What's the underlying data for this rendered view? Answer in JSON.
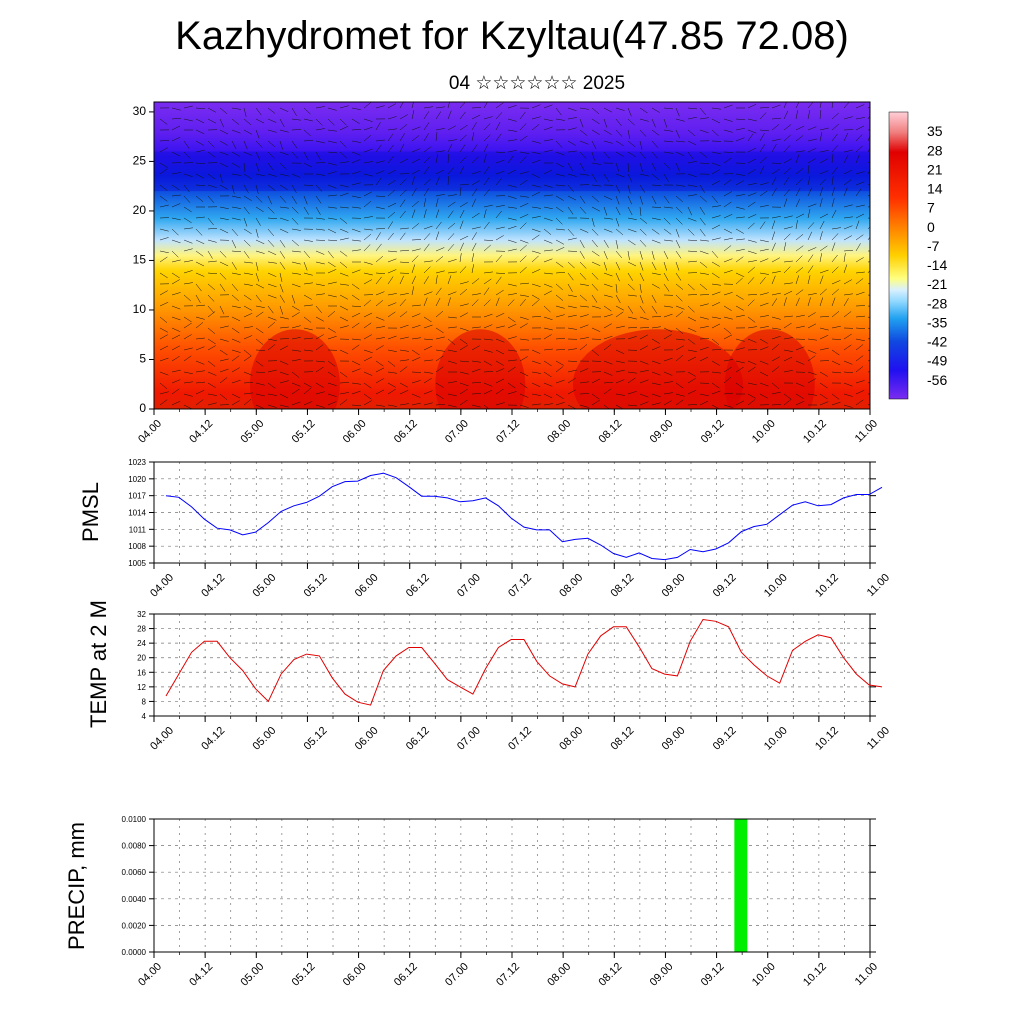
{
  "header": {
    "title": "Kazhydromet for Kzyltau(47.85 72.08)",
    "subtitle": "04 ☆☆☆☆☆☆ 2025"
  },
  "colors": {
    "pmsl_line": "#0000ff",
    "temp_line": "#e00000",
    "precip_bar": "#00ee00",
    "grid": "#666666"
  },
  "chart_data": [
    {
      "type": "heatmap",
      "name": "upper-air-cross-section",
      "x_ticks": [
        "04.00",
        "04.12",
        "05.00",
        "05.12",
        "06.00",
        "06.12",
        "07.00",
        "07.12",
        "08.00",
        "08.12",
        "09.00",
        "09.12",
        "10.00",
        "10.12",
        "11.00"
      ],
      "y_ticks": [
        0,
        5,
        10,
        15,
        20,
        25,
        30
      ],
      "ylim": [
        0,
        31
      ],
      "colorbar_labels": [
        "35",
        "28",
        "21",
        "14",
        "7",
        "0",
        "-7",
        "-14",
        "-21",
        "-28",
        "-35",
        "-42",
        "-49",
        "-56"
      ],
      "colorbar_range": [
        -63,
        42
      ],
      "wind_vectors": true
    },
    {
      "type": "line",
      "name": "pmsl",
      "ylabel": "PMSL",
      "ylim": [
        1005,
        1023
      ],
      "y_ticks": [
        1005,
        1008,
        1011,
        1014,
        1017,
        1020,
        1023
      ],
      "x_ticks": [
        "04.00",
        "04.12",
        "05.00",
        "05.12",
        "06.00",
        "06.12",
        "07.00",
        "07.12",
        "08.00",
        "08.12",
        "09.00",
        "09.12",
        "10.00",
        "10.12",
        "11.00"
      ],
      "x_step_hours": 3,
      "values": [
        1017,
        1016.7,
        1015,
        1012.8,
        1011.2,
        1010.9,
        1010,
        1010.5,
        1012.2,
        1014.2,
        1015.2,
        1015.8,
        1016.9,
        1018.6,
        1019.5,
        1019.6,
        1020.6,
        1021,
        1020.2,
        1018.6,
        1016.9,
        1016.9,
        1016.6,
        1015.9,
        1016.1,
        1016.6,
        1015.2,
        1013,
        1011.4,
        1010.9,
        1010.9,
        1008.8,
        1009.2,
        1009.4,
        1008.2,
        1006.7,
        1006,
        1006.8,
        1005.8,
        1005.6,
        1006,
        1007.4,
        1007,
        1007.5,
        1008.6,
        1010.6,
        1011.5,
        1011.9,
        1013.6,
        1015.3,
        1015.9,
        1015.2,
        1015.4,
        1016.6,
        1017.2,
        1017.2,
        1018.5
      ]
    },
    {
      "type": "line",
      "name": "temp-2m",
      "ylabel": "TEMP at 2 M",
      "ylim": [
        4,
        32
      ],
      "y_ticks": [
        4,
        8,
        12,
        16,
        20,
        24,
        28,
        32
      ],
      "x_ticks": [
        "04.00",
        "04.12",
        "05.00",
        "05.12",
        "06.00",
        "06.12",
        "07.00",
        "07.12",
        "08.00",
        "08.12",
        "09.00",
        "09.12",
        "10.00",
        "10.12",
        "11.00"
      ],
      "x_step_hours": 3,
      "values": [
        9.5,
        15.5,
        21.5,
        24.5,
        24.5,
        20,
        16.5,
        11.5,
        8,
        15.5,
        19.5,
        21,
        20.5,
        14.5,
        10,
        7.8,
        7,
        16.5,
        20.5,
        22.8,
        22.8,
        18.5,
        14,
        12,
        10,
        17,
        22.8,
        25,
        25,
        19,
        15,
        12.8,
        12,
        21,
        26,
        28.5,
        28.5,
        23,
        17,
        15.5,
        15,
        24.5,
        30.5,
        30,
        28.5,
        21.5,
        18,
        15,
        13,
        22,
        24.5,
        26.3,
        25.5,
        20,
        15.5,
        12.5,
        12
      ]
    },
    {
      "type": "bar",
      "name": "precipitation",
      "ylabel": "PRECIP, mm",
      "ylim": [
        0,
        0.01
      ],
      "y_ticks": [
        "0.0000",
        "0.0020",
        "0.0040",
        "0.0060",
        "0.0080",
        "0.0100"
      ],
      "x_ticks": [
        "04.00",
        "04.12",
        "05.00",
        "05.12",
        "06.00",
        "06.12",
        "07.00",
        "07.12",
        "08.00",
        "08.12",
        "09.00",
        "09.12",
        "10.00",
        "10.12",
        "11.00"
      ],
      "bars": [
        {
          "x_hours": 135,
          "value": 0.01
        }
      ]
    }
  ]
}
